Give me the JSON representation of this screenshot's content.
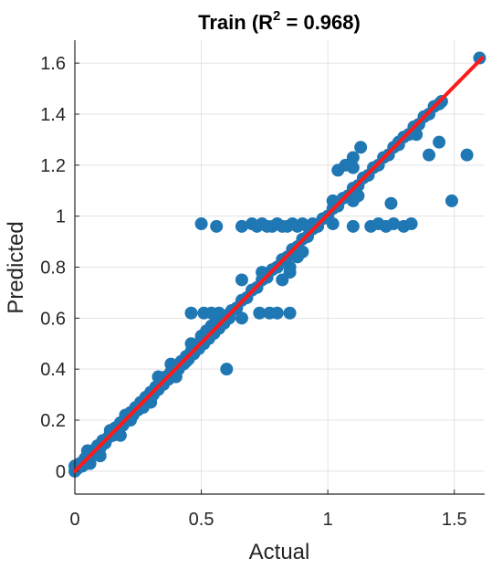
{
  "chart_data": {
    "type": "scatter",
    "title": "Train (R",
    "title_sup": "2",
    "title_rest": " = 0.968)",
    "xlabel": "Actual",
    "ylabel": "Predicted",
    "xlim": [
      0,
      1.62
    ],
    "ylim": [
      -0.09,
      1.69
    ],
    "grid": true,
    "x_ticks": [
      0,
      0.5,
      1,
      1.5
    ],
    "x_tick_labels": [
      "0",
      "0.5",
      "1",
      "1.5"
    ],
    "y_ticks": [
      0,
      0.2,
      0.4,
      0.6,
      0.8,
      1,
      1.2,
      1.4,
      1.6
    ],
    "y_tick_labels": [
      "0",
      "0.2",
      "0.4",
      "0.6",
      "0.8",
      "1",
      "1.2",
      "1.4",
      "1.6"
    ],
    "colors": {
      "points": "#1f77b4",
      "fit_line": "#ff1a1a",
      "grid": "#e3e3e3",
      "axis": "#262626"
    },
    "fit_line": {
      "x": [
        0,
        1.61
      ],
      "y": [
        0,
        1.62
      ]
    },
    "series": [
      {
        "x": [
          0.0,
          0.0,
          0.01,
          0.02,
          0.03,
          0.04,
          0.05,
          0.06,
          0.07,
          0.08,
          0.09,
          0.1,
          0.11,
          0.12,
          0.13,
          0.14,
          0.15,
          0.16,
          0.17,
          0.18,
          0.19,
          0.2,
          0.21,
          0.22,
          0.23,
          0.24,
          0.25,
          0.26,
          0.27,
          0.28,
          0.29,
          0.3,
          0.31,
          0.32,
          0.33,
          0.34,
          0.35,
          0.36,
          0.37,
          0.38,
          0.39,
          0.4,
          0.41,
          0.42,
          0.43,
          0.44,
          0.45,
          0.46,
          0.47,
          0.48,
          0.49,
          0.5,
          0.51,
          0.52,
          0.53,
          0.54,
          0.55,
          0.56,
          0.57,
          0.58,
          0.59,
          0.6,
          0.61,
          0.62,
          0.64,
          0.66,
          0.68,
          0.7,
          0.72,
          0.74,
          0.76,
          0.78,
          0.8,
          0.82,
          0.84,
          0.86,
          0.88,
          0.9,
          0.92,
          0.94,
          0.96,
          0.98,
          1.0,
          1.02,
          1.04,
          1.06,
          1.08,
          1.1,
          1.12,
          1.14,
          1.16,
          1.18,
          1.2,
          1.22,
          1.24,
          1.26,
          1.28,
          1.3,
          1.32,
          1.34,
          1.36,
          1.38,
          1.4,
          1.42,
          1.44,
          1.45,
          1.6,
          0.06,
          0.1,
          0.18,
          0.22,
          0.27,
          0.3,
          0.4,
          0.44,
          0.05,
          0.14,
          0.2,
          0.33,
          0.38,
          0.46,
          0.5,
          0.52,
          0.54,
          0.56,
          0.5,
          0.56,
          0.66,
          0.7,
          0.72,
          0.74,
          0.76,
          0.78,
          0.8,
          0.82,
          0.84,
          0.86,
          0.88,
          0.9,
          0.92,
          0.94,
          0.96,
          1.02,
          1.1,
          1.17,
          1.2,
          1.23,
          1.26,
          1.3,
          1.33,
          0.46,
          0.51,
          0.54,
          0.57,
          0.6,
          0.66,
          0.73,
          0.77,
          0.8,
          0.85,
          0.6,
          0.66,
          0.74,
          0.8,
          0.85,
          0.82,
          0.85,
          0.88,
          0.9,
          1.04,
          1.07,
          1.1,
          1.13,
          1.1,
          1.28,
          1.35,
          1.4,
          1.44,
          1.49,
          1.55,
          1.12,
          1.02,
          1.1,
          1.25
        ],
        "y": [
          0.0,
          0.02,
          0.01,
          0.03,
          0.02,
          0.05,
          0.04,
          0.06,
          0.08,
          0.07,
          0.1,
          0.09,
          0.12,
          0.11,
          0.13,
          0.15,
          0.14,
          0.17,
          0.16,
          0.19,
          0.18,
          0.21,
          0.2,
          0.23,
          0.22,
          0.25,
          0.24,
          0.27,
          0.26,
          0.29,
          0.28,
          0.31,
          0.3,
          0.33,
          0.32,
          0.35,
          0.34,
          0.37,
          0.36,
          0.39,
          0.38,
          0.41,
          0.4,
          0.43,
          0.42,
          0.45,
          0.44,
          0.47,
          0.46,
          0.49,
          0.48,
          0.51,
          0.5,
          0.53,
          0.52,
          0.55,
          0.54,
          0.57,
          0.56,
          0.59,
          0.58,
          0.61,
          0.6,
          0.63,
          0.64,
          0.67,
          0.68,
          0.71,
          0.72,
          0.75,
          0.76,
          0.79,
          0.8,
          0.83,
          0.84,
          0.87,
          0.88,
          0.91,
          0.92,
          0.95,
          0.96,
          0.99,
          1.0,
          1.03,
          1.04,
          1.07,
          1.08,
          1.11,
          1.12,
          1.15,
          1.16,
          1.19,
          1.2,
          1.23,
          1.24,
          1.27,
          1.28,
          1.31,
          1.32,
          1.35,
          1.36,
          1.39,
          1.4,
          1.43,
          1.44,
          1.45,
          1.62,
          0.03,
          0.06,
          0.14,
          0.2,
          0.25,
          0.27,
          0.37,
          0.43,
          0.08,
          0.16,
          0.22,
          0.37,
          0.42,
          0.5,
          0.53,
          0.55,
          0.57,
          0.59,
          0.97,
          0.96,
          0.96,
          0.97,
          0.96,
          0.97,
          0.96,
          0.96,
          0.97,
          0.96,
          0.96,
          0.97,
          0.96,
          0.97,
          0.96,
          0.97,
          0.96,
          0.97,
          0.96,
          0.96,
          0.97,
          0.96,
          0.97,
          0.96,
          0.97,
          0.62,
          0.62,
          0.62,
          0.62,
          0.6,
          0.6,
          0.62,
          0.62,
          0.62,
          0.62,
          0.4,
          0.75,
          0.78,
          0.8,
          0.78,
          0.75,
          0.8,
          0.84,
          0.86,
          1.18,
          1.2,
          1.23,
          1.27,
          1.19,
          1.29,
          1.32,
          1.24,
          1.29,
          1.06,
          1.24,
          1.08,
          1.06,
          1.06,
          1.05
        ]
      }
    ]
  }
}
